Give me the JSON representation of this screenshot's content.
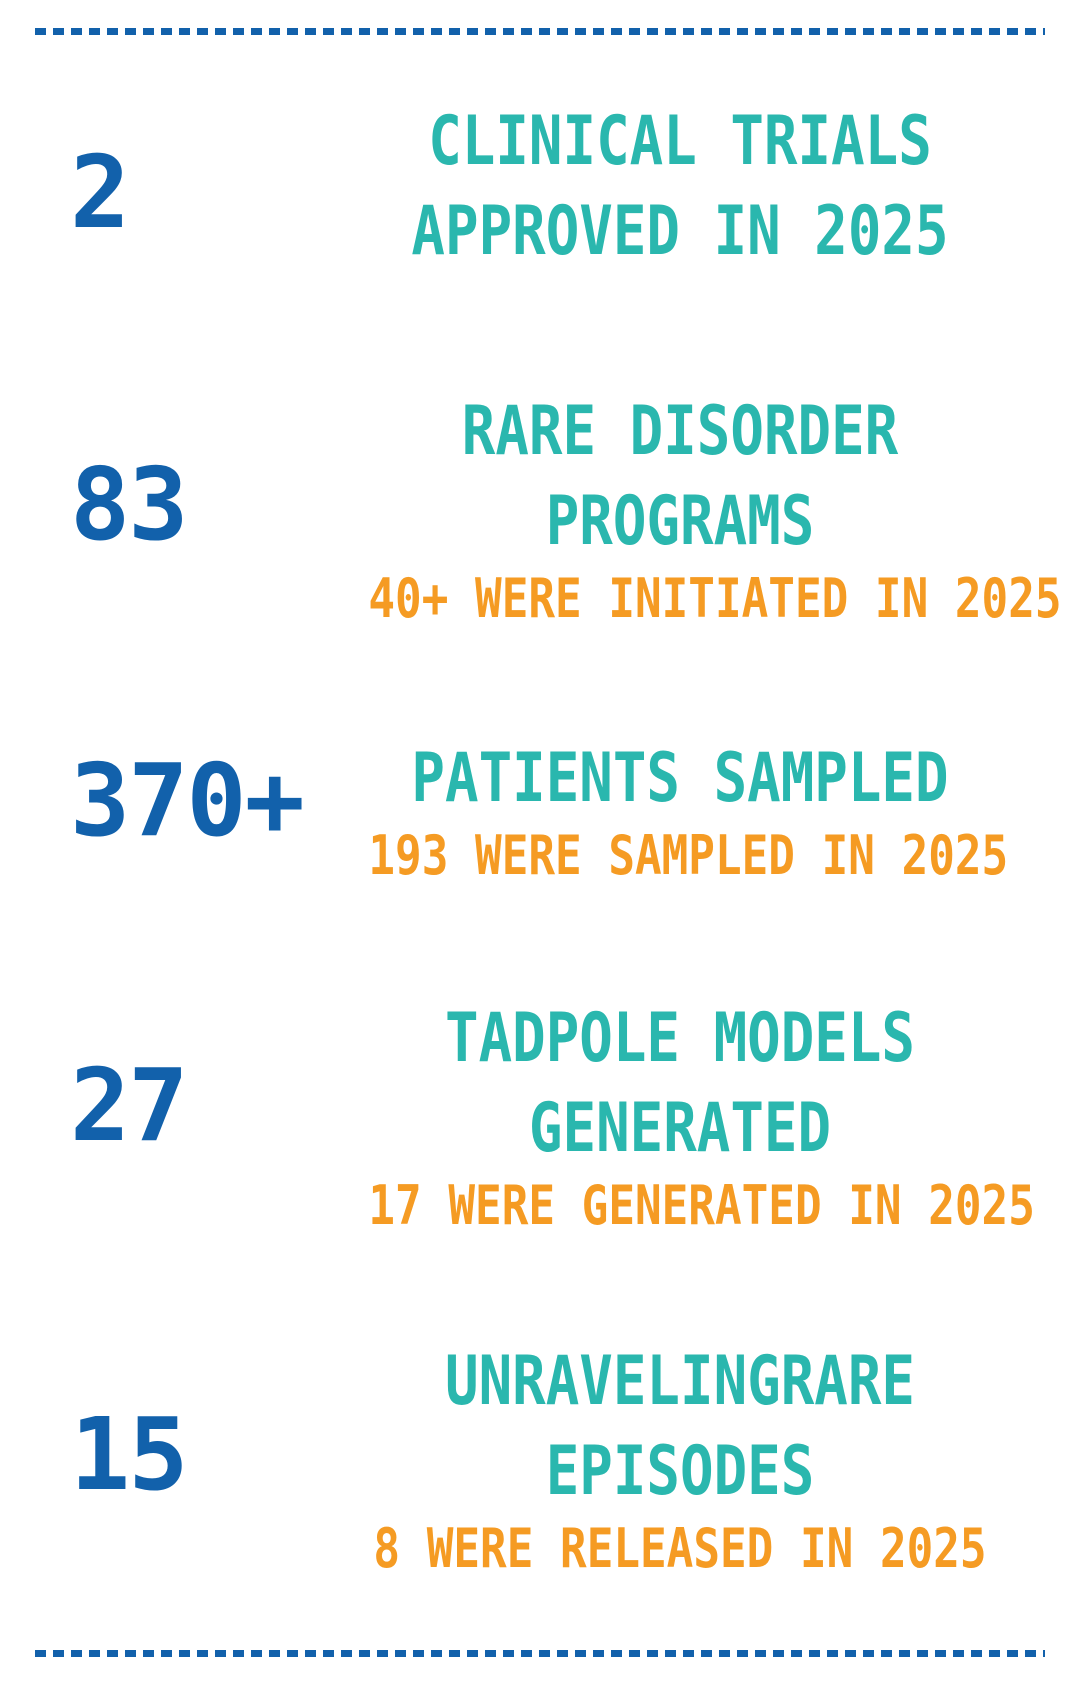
{
  "theme": {
    "blue": "#1261ab",
    "teal": "#2ab7ae",
    "orange": "#f59b23"
  },
  "stats": [
    {
      "value": "2",
      "title_lines": [
        "CLINICAL TRIALS",
        "APPROVED IN 2025"
      ]
    },
    {
      "value": "83",
      "title_lines": [
        "RARE DISORDER",
        "PROGRAMS"
      ],
      "subtitle": "40+ WERE INITIATED IN 2025"
    },
    {
      "value": "370+",
      "title_lines": [
        "PATIENTS SAMPLED"
      ],
      "subtitle": "193 WERE SAMPLED IN 2025"
    },
    {
      "value": "27",
      "title_lines": [
        "TADPOLE MODELS",
        "GENERATED"
      ],
      "subtitle": "17 WERE GENERATED IN 2025"
    },
    {
      "value": "15",
      "title_lines": [
        "UNRAVELINGRARE",
        "EPISODES"
      ],
      "subtitle": "8 WERE RELEASED IN 2025"
    }
  ]
}
